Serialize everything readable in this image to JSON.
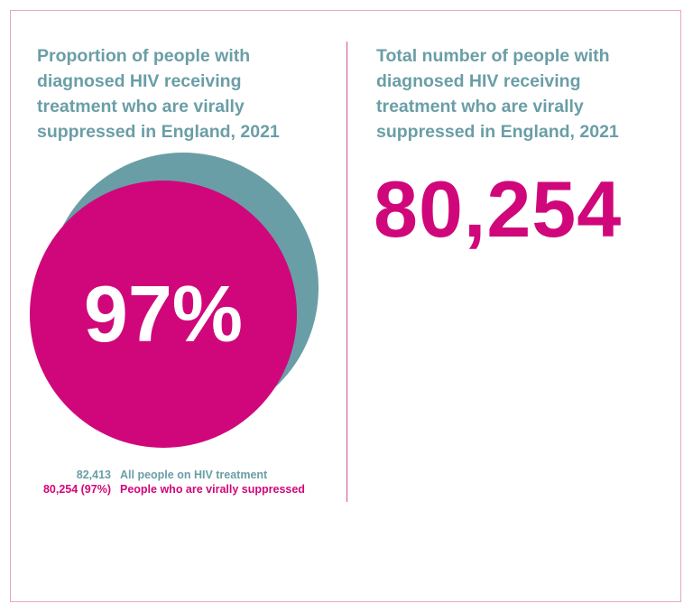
{
  "colors": {
    "frame": "#e8a6c8",
    "accent_pink": "#d0077a",
    "accent_teal": "#6a9ea6"
  },
  "left_panel": {
    "title": "Proportion of people with diagnosed HIV receiving treatment who are virally suppressed in England, 2021"
  },
  "right_panel": {
    "title": "Total number of people with diagnosed HIV receiving treatment who are virally suppressed in England, 2021",
    "big_number": "80,254"
  },
  "legend": {
    "items": [
      {
        "value": "82,413",
        "label": "All people on HIV treatment",
        "color": "#6a9ea6"
      },
      {
        "value": "80,254 (97%)",
        "label": "People who are virally suppressed",
        "color": "#d0077a"
      }
    ]
  },
  "chart_data": {
    "type": "bubble",
    "series": [
      {
        "name": "All people on HIV treatment",
        "value": 82413,
        "color": "#6a9ea6"
      },
      {
        "name": "People who are virally suppressed",
        "value": 80254,
        "color": "#d0077a"
      }
    ],
    "center_label": "97%"
  }
}
